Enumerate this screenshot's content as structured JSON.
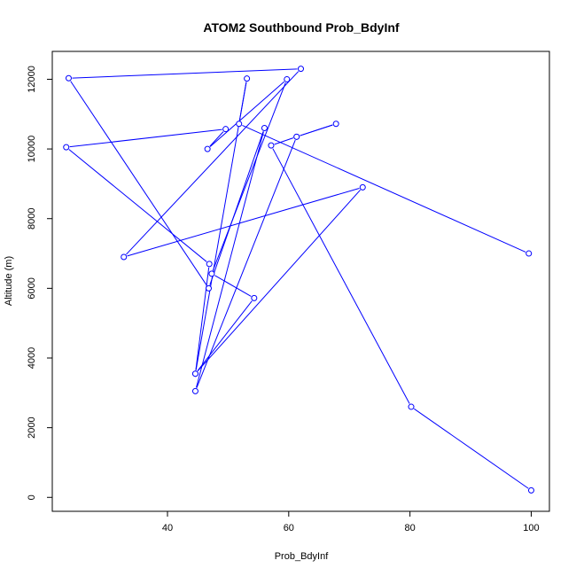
{
  "chart_data": {
    "type": "line",
    "title": "ATOM2 Southbound Prob_BdyInf",
    "xlabel": "Prob_BdyInf",
    "ylabel": "Altitude (m)",
    "xlim": [
      21.0,
      103.0
    ],
    "ylim": [
      -400,
      12800
    ],
    "xticks": [
      40,
      60,
      80,
      100
    ],
    "yticks": [
      0,
      2000,
      4000,
      6000,
      8000,
      10000,
      12000
    ],
    "grid": false,
    "color": "#0000ff",
    "series": [
      {
        "points": [
          {
            "x": 100.0,
            "y": 200
          },
          {
            "x": 80.2,
            "y": 2600
          },
          {
            "x": 57.1,
            "y": 10100
          },
          {
            "x": 61.3,
            "y": 10350
          },
          {
            "x": 67.8,
            "y": 10720
          },
          {
            "x": 61.3,
            "y": 10350
          },
          {
            "x": 44.6,
            "y": 3050
          },
          {
            "x": 56.0,
            "y": 10600
          },
          {
            "x": 46.8,
            "y": 6000
          },
          {
            "x": 23.7,
            "y": 12030
          },
          {
            "x": 62.0,
            "y": 12300
          },
          {
            "x": 32.8,
            "y": 6900
          },
          {
            "x": 72.2,
            "y": 8900
          },
          {
            "x": 44.6,
            "y": 3550
          },
          {
            "x": 54.3,
            "y": 5720
          },
          {
            "x": 47.3,
            "y": 6420
          },
          {
            "x": 59.7,
            "y": 12000
          },
          {
            "x": 46.6,
            "y": 10000
          },
          {
            "x": 49.6,
            "y": 10570
          },
          {
            "x": 23.3,
            "y": 10050
          },
          {
            "x": 46.9,
            "y": 6700
          },
          {
            "x": 44.6,
            "y": 3550
          },
          {
            "x": 53.1,
            "y": 12020
          },
          {
            "x": 51.8,
            "y": 10720
          },
          {
            "x": 99.6,
            "y": 7000
          }
        ]
      }
    ]
  }
}
